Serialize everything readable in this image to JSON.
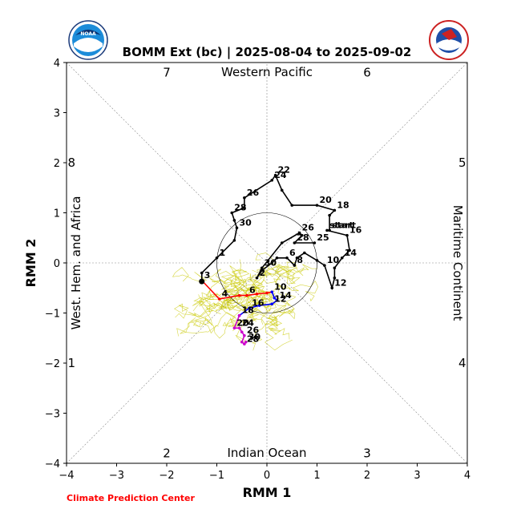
{
  "title": "BOMM Ext (bc) | 2025-08-04 to 2025-09-02",
  "credit": "Climate Prediction Center",
  "logos": {
    "left": {
      "name": "noaa-logo",
      "text": "NOAA"
    },
    "right": {
      "name": "nws-logo",
      "text": "NATIONAL WEATHER SERVICE"
    }
  },
  "chart_data": {
    "type": "line",
    "xlabel": "RMM 1",
    "ylabel": "RMM 2",
    "xlim": [
      -4,
      4
    ],
    "ylim": [
      -4,
      4
    ],
    "xticks": [
      -4,
      -3,
      -2,
      -1,
      0,
      1,
      2,
      3,
      4
    ],
    "yticks": [
      -4,
      -3,
      -2,
      -1,
      0,
      1,
      2,
      3,
      4
    ],
    "grid": false,
    "unit_circle_radius": 1,
    "regions": {
      "top": "Western Pacific",
      "bottom": "Indian Ocean",
      "left": "West. Hem. and Africa",
      "right": "Maritime Continent"
    },
    "phases": [
      {
        "label": "1",
        "x": -3.9,
        "y": -2.0
      },
      {
        "label": "2",
        "x": -2.0,
        "y": -3.8
      },
      {
        "label": "3",
        "x": 2.0,
        "y": -3.8
      },
      {
        "label": "4",
        "x": 3.9,
        "y": -2.0
      },
      {
        "label": "5",
        "x": 3.9,
        "y": 2.0
      },
      {
        "label": "6",
        "x": 2.0,
        "y": 3.8
      },
      {
        "label": "7",
        "x": -2.0,
        "y": 3.8
      },
      {
        "label": "8",
        "x": -3.9,
        "y": 2.0
      }
    ],
    "series": [
      {
        "color": "#000000",
        "points": [
          {
            "x": 1.25,
            "y": 0.65,
            "label": "start"
          },
          {
            "x": 1.25,
            "y": 0.95
          },
          {
            "x": 1.35,
            "y": 1.05,
            "label": "18"
          },
          {
            "x": 1.0,
            "y": 1.15,
            "label": "20"
          },
          {
            "x": 0.5,
            "y": 1.15
          },
          {
            "x": 0.3,
            "y": 1.45
          },
          {
            "x": 0.17,
            "y": 1.75,
            "label": "22"
          },
          {
            "x": 0.1,
            "y": 1.65,
            "label": "24"
          },
          {
            "x": -0.45,
            "y": 1.3,
            "label": "26"
          },
          {
            "x": -0.45,
            "y": 1.1
          },
          {
            "x": -0.7,
            "y": 1.0,
            "label": "28"
          },
          {
            "x": -0.65,
            "y": 0.85
          },
          {
            "x": -0.6,
            "y": 0.7,
            "label": "30"
          },
          {
            "x": -0.65,
            "y": 0.45
          },
          {
            "x": -1.0,
            "y": 0.1,
            "label": "1"
          },
          {
            "x": -1.3,
            "y": -0.2
          },
          {
            "x": -1.3,
            "y": -0.35,
            "label": "3"
          }
        ]
      },
      {
        "color": "#000000",
        "points": [
          {
            "x": 1.2,
            "y": 0.65,
            "label": "start"
          },
          {
            "x": 1.6,
            "y": 0.55,
            "label": "16"
          },
          {
            "x": 1.65,
            "y": 0.25
          },
          {
            "x": 1.5,
            "y": 0.1,
            "label": "14"
          },
          {
            "x": 1.35,
            "y": -0.1
          },
          {
            "x": 1.35,
            "y": -0.3
          },
          {
            "x": 1.3,
            "y": -0.5,
            "label": "12"
          },
          {
            "x": 1.15,
            "y": -0.05,
            "label": "10"
          },
          {
            "x": 1.0,
            "y": 0.05
          },
          {
            "x": 0.75,
            "y": 0.2
          },
          {
            "x": 0.6,
            "y": 0.1
          },
          {
            "x": 0.55,
            "y": -0.05,
            "label": "8"
          },
          {
            "x": 0.4,
            "y": 0.1,
            "label": "6"
          },
          {
            "x": 0.2,
            "y": 0.1
          },
          {
            "x": 0.1,
            "y": 0.0
          },
          {
            "x": -0.1,
            "y": -0.15
          },
          {
            "x": -0.2,
            "y": -0.3,
            "label": "2"
          },
          {
            "x": -0.1,
            "y": -0.1,
            "label": "30"
          },
          {
            "x": 0.3,
            "y": 0.4
          },
          {
            "x": 0.65,
            "y": 0.6,
            "label": "26"
          },
          {
            "x": 0.7,
            "y": 0.55
          },
          {
            "x": 0.55,
            "y": 0.4,
            "label": "28"
          },
          {
            "x": 0.95,
            "y": 0.4,
            "label": "25"
          }
        ]
      },
      {
        "color": "#ff0000",
        "points": [
          {
            "x": -1.3,
            "y": -0.35
          },
          {
            "x": -0.95,
            "y": -0.72,
            "label": "4"
          },
          {
            "x": -0.55,
            "y": -0.65
          },
          {
            "x": -0.4,
            "y": -0.65,
            "label": "6"
          },
          {
            "x": -0.2,
            "y": -0.62
          },
          {
            "x": 0.0,
            "y": -0.6
          },
          {
            "x": 0.1,
            "y": -0.58,
            "label": "10"
          }
        ]
      },
      {
        "color": "#0000ff",
        "points": [
          {
            "x": 0.1,
            "y": -0.58
          },
          {
            "x": 0.15,
            "y": -0.7
          },
          {
            "x": 0.2,
            "y": -0.75,
            "label": "14"
          },
          {
            "x": 0.1,
            "y": -0.82,
            "label": "12"
          },
          {
            "x": -0.15,
            "y": -0.85
          },
          {
            "x": -0.35,
            "y": -0.9,
            "label": "16"
          },
          {
            "x": -0.55,
            "y": -1.05,
            "label": "18"
          }
        ]
      },
      {
        "color": "#cc00cc",
        "points": [
          {
            "x": -0.55,
            "y": -1.05
          },
          {
            "x": -0.65,
            "y": -1.3,
            "label": "20"
          },
          {
            "x": -0.55,
            "y": -1.3,
            "label": "24"
          },
          {
            "x": -0.5,
            "y": -1.38
          },
          {
            "x": -0.45,
            "y": -1.45,
            "label": "26"
          },
          {
            "x": -0.5,
            "y": -1.58
          },
          {
            "x": -0.45,
            "y": -1.62,
            "label": "28"
          },
          {
            "x": -0.42,
            "y": -1.58,
            "label": "30"
          }
        ]
      }
    ],
    "end_marker": {
      "x": -1.3,
      "y": -0.37
    }
  }
}
